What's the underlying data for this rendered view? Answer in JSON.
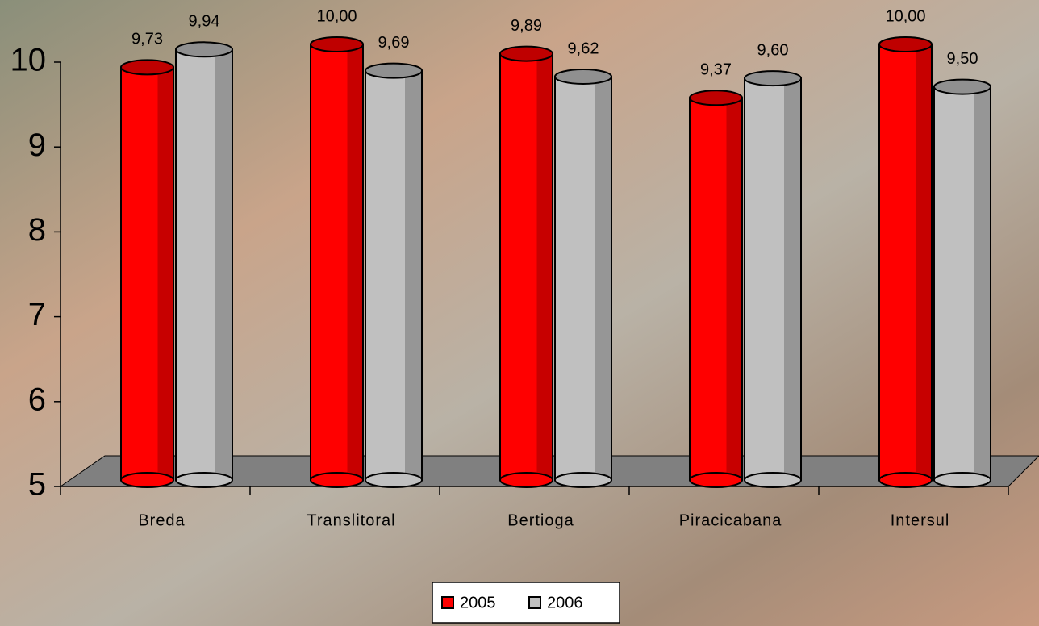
{
  "chart_data": {
    "type": "bar",
    "categories": [
      "Breda",
      "Translitoral",
      "Bertioga",
      "Piracicabana",
      "Intersul"
    ],
    "series": [
      {
        "name": "2005",
        "color": "#ff0000",
        "values": [
          9.73,
          10.0,
          9.89,
          9.37,
          10.0
        ],
        "value_labels": [
          "9,73",
          "10,00",
          "9,89",
          "9,37",
          "10,00"
        ]
      },
      {
        "name": "2006",
        "color": "#c0c0c0",
        "values": [
          9.94,
          9.69,
          9.62,
          9.6,
          9.5
        ],
        "value_labels": [
          "9,94",
          "9,69",
          "9,62",
          "9,60",
          "9,50"
        ]
      }
    ],
    "ylim": [
      5,
      10
    ],
    "yticks": [
      5,
      6,
      7,
      8,
      9,
      10
    ],
    "legend": "bottom"
  }
}
